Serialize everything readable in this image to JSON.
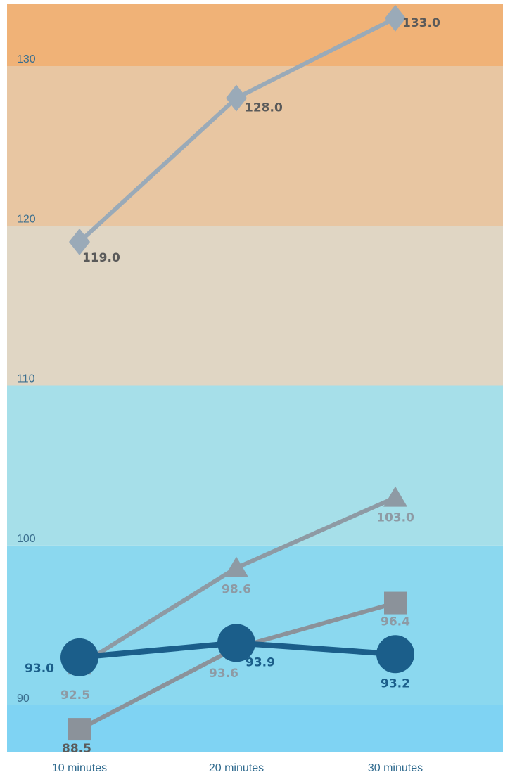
{
  "chart_data": {
    "type": "line",
    "categories": [
      "10 minutes",
      "20 minutes",
      "30 minutes"
    ],
    "y_ticks": [
      90,
      100,
      110,
      120,
      130
    ],
    "ylim": [
      87,
      134
    ],
    "grid": false,
    "bands": [
      {
        "from": 87,
        "to": 90,
        "color": "#7fd3f3"
      },
      {
        "from": 90,
        "to": 100,
        "color": "#8bd8ef"
      },
      {
        "from": 100,
        "to": 110,
        "color": "#a6dfe9"
      },
      {
        "from": 110,
        "to": 120,
        "color": "#e0d6c4"
      },
      {
        "from": 120,
        "to": 130,
        "color": "#e8c6a2"
      },
      {
        "from": 130,
        "to": 134,
        "color": "#f0b277"
      }
    ],
    "series": [
      {
        "values": [
          119.0,
          128.0,
          133.0
        ],
        "labels": [
          "119.0",
          "128.0",
          "133.0"
        ],
        "marker": "diamond",
        "color": "#9aaab8",
        "label_color": "#5a5a5a"
      },
      {
        "values": [
          92.5,
          98.6,
          103.0
        ],
        "labels": [
          "92.5",
          "98.6",
          "103.0"
        ],
        "marker": "triangle",
        "color": "#8e9aa4",
        "label_color": "#8e9aa4"
      },
      {
        "values": [
          88.5,
          93.6,
          96.4
        ],
        "labels": [
          "88.5",
          "93.6",
          "96.4"
        ],
        "marker": "square",
        "color": "#8b929a",
        "label_color_first": "#5a5a5a",
        "label_color": "#8e9aa4"
      },
      {
        "values": [
          93.0,
          93.9,
          93.2
        ],
        "labels": [
          "93.0",
          "93.9",
          "93.2"
        ],
        "marker": "circle",
        "color": "#1b5e8a",
        "label_color": "#1b5e8a"
      }
    ]
  }
}
